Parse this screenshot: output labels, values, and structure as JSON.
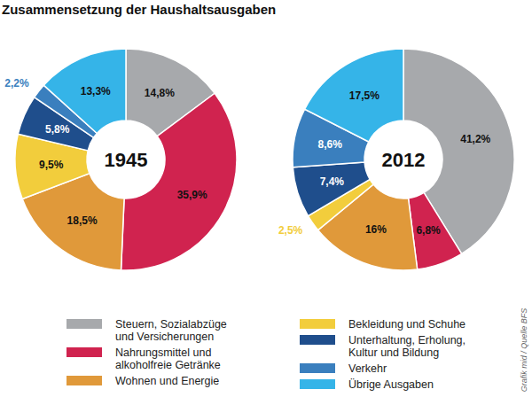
{
  "chart_data": {
    "type": "donut",
    "title": "Zusammensetzung der Haushaltsausgaben",
    "categories": [
      "Steuern, Sozialabzüge und Versicherungen",
      "Nahrungsmittel und alkoholfreie Getränke",
      "Wohnen und Energie",
      "Bekleidung und Schuhe",
      "Unterhaltung, Erholung, Kultur und Bildung",
      "Verkehr",
      "Übrige Ausgaben"
    ],
    "colors": [
      "#a7a9ac",
      "#d0234f",
      "#e0993a",
      "#f2cd3c",
      "#1f4e8c",
      "#3a7fbe",
      "#35b4e8"
    ],
    "series": [
      {
        "name": "1945",
        "values": [
          14.8,
          35.9,
          18.5,
          9.5,
          5.8,
          2.2,
          13.3
        ],
        "value_labels": [
          "14,8%",
          "35,9%",
          "18,5%",
          "9,5%",
          "5,8%",
          "2,2%",
          "13,3%"
        ]
      },
      {
        "name": "2012",
        "values": [
          41.2,
          6.8,
          16,
          2.5,
          7.4,
          8.6,
          17.5
        ],
        "value_labels": [
          "41,2%",
          "6,8%",
          "16%",
          "2,5%",
          "7,4%",
          "8,6%",
          "17,5%"
        ]
      }
    ],
    "data_labels": true,
    "legend": "bottom",
    "annotations": [
      "Grafik mid / Quelle BFS"
    ]
  }
}
